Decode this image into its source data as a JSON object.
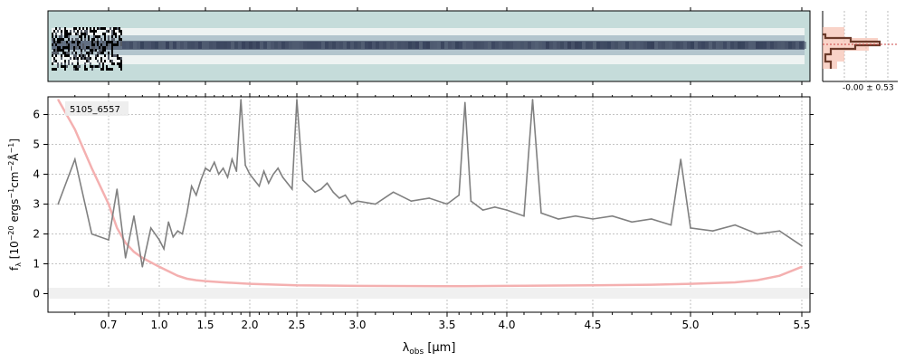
{
  "chart_data": [
    {
      "type": "heatmap",
      "panel": "2d-spectrum",
      "description_visible": "2D spectrum cutout, trace centred, noisy at blue end",
      "colors": {
        "background": "#c5dcda",
        "trace": "#2b3550",
        "noise_dark": "#000000"
      }
    },
    {
      "type": "line",
      "panel": "cross-dispersion-profile",
      "annotation": "-0.00 ± 0.53",
      "colors": {
        "profile": "#6b3a2a",
        "fill": "#f7c0b0"
      }
    },
    {
      "type": "line",
      "panel": "1d-spectrum",
      "label": "5105_6557",
      "xlabel": "λobs [μm]",
      "ylabel": "fλ [10−20 ergs−1cm−2Å−1]",
      "xscale": "nonlinear (dispersion-scaled)",
      "xticks": [
        0.7,
        1.0,
        1.5,
        2.0,
        2.5,
        3.0,
        3.5,
        4.0,
        4.5,
        5.0,
        5.5
      ],
      "xtick_labels": [
        "0.7",
        "1.0",
        "1.5",
        "2.0",
        "2.5",
        "3.0",
        "3.5",
        "4.0",
        "4.5",
        "5.0",
        "5.5"
      ],
      "yticks": [
        0,
        1,
        2,
        3,
        4,
        5,
        6
      ],
      "ytick_labels": [
        "0",
        "1",
        "2",
        "3",
        "4",
        "5",
        "6"
      ],
      "ylim": [
        -0.65,
        6.55
      ],
      "xlim": [
        0.52,
        5.53
      ],
      "grid": true,
      "series": [
        {
          "role": "flux",
          "color": "#808080",
          "x": [
            0.55,
            0.6,
            0.65,
            0.7,
            0.75,
            0.8,
            0.85,
            0.9,
            0.95,
            1.0,
            1.05,
            1.1,
            1.15,
            1.2,
            1.25,
            1.3,
            1.35,
            1.4,
            1.45,
            1.5,
            1.55,
            1.6,
            1.65,
            1.7,
            1.75,
            1.8,
            1.85,
            1.9,
            1.95,
            2.0,
            2.05,
            2.1,
            2.15,
            2.2,
            2.25,
            2.3,
            2.35,
            2.4,
            2.45,
            2.5,
            2.55,
            2.6,
            2.65,
            2.7,
            2.75,
            2.8,
            2.85,
            2.9,
            2.95,
            3.0,
            3.1,
            3.2,
            3.3,
            3.4,
            3.5,
            3.6,
            3.65,
            3.7,
            3.8,
            3.9,
            4.0,
            4.1,
            4.15,
            4.2,
            4.3,
            4.4,
            4.5,
            4.6,
            4.7,
            4.8,
            4.9,
            4.95,
            5.0,
            5.1,
            5.2,
            5.3,
            5.4,
            5.5
          ],
          "y": [
            3.0,
            4.5,
            2.0,
            1.8,
            3.5,
            1.2,
            2.6,
            0.9,
            2.2,
            1.8,
            1.5,
            2.4,
            1.9,
            2.1,
            2.0,
            2.7,
            3.6,
            3.3,
            3.8,
            4.2,
            4.1,
            4.4,
            4.0,
            4.2,
            3.9,
            4.5,
            4.1,
            6.5,
            4.3,
            4.0,
            3.8,
            3.6,
            4.1,
            3.7,
            4.0,
            4.2,
            3.9,
            3.7,
            3.5,
            6.5,
            3.8,
            3.6,
            3.4,
            3.5,
            3.7,
            3.4,
            3.2,
            3.3,
            3.0,
            3.1,
            3.0,
            3.4,
            3.1,
            3.2,
            3.0,
            3.3,
            6.4,
            3.1,
            2.8,
            2.9,
            2.8,
            2.6,
            6.5,
            2.7,
            2.5,
            2.6,
            2.5,
            2.6,
            2.4,
            2.5,
            2.3,
            4.5,
            2.2,
            2.1,
            2.3,
            2.0,
            2.1,
            1.6
          ]
        },
        {
          "role": "uncertainty",
          "color": "#f4b0b0",
          "x": [
            0.55,
            0.6,
            0.65,
            0.7,
            0.75,
            0.8,
            0.85,
            0.9,
            0.95,
            1.0,
            1.1,
            1.2,
            1.3,
            1.4,
            1.5,
            1.7,
            2.0,
            2.5,
            3.0,
            3.5,
            4.0,
            4.5,
            4.8,
            5.0,
            5.2,
            5.3,
            5.4,
            5.5
          ],
          "y": [
            6.5,
            5.5,
            4.2,
            3.0,
            2.2,
            1.7,
            1.4,
            1.2,
            1.05,
            0.9,
            0.75,
            0.6,
            0.5,
            0.45,
            0.42,
            0.38,
            0.33,
            0.28,
            0.26,
            0.25,
            0.26,
            0.28,
            0.3,
            0.33,
            0.38,
            0.45,
            0.6,
            0.9
          ]
        }
      ]
    }
  ]
}
